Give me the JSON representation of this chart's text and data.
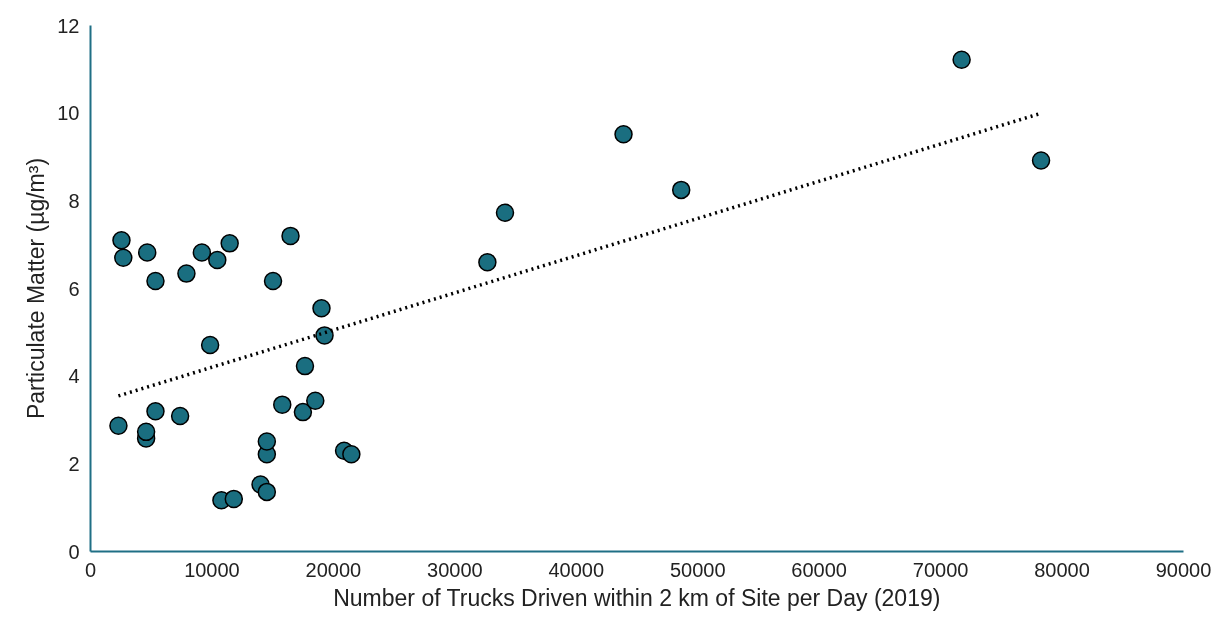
{
  "chart_data": {
    "type": "scatter",
    "xlabel": "Number of Trucks Driven within 2 km of Site per Day (2019)",
    "ylabel": "Particulate Matter (µg/m³)",
    "xlim": [
      0,
      90000
    ],
    "ylim": [
      0,
      12
    ],
    "xticks": [
      0,
      10000,
      20000,
      30000,
      40000,
      50000,
      60000,
      70000,
      80000,
      90000
    ],
    "yticks": [
      0,
      2,
      4,
      6,
      8,
      10,
      12
    ],
    "grid": false,
    "series": [
      {
        "marker": "circle",
        "color": "#1a6e80",
        "x": [
          2300,
          2550,
          2700,
          4670,
          4580,
          4580,
          5350,
          5350,
          7380,
          7900,
          9170,
          9850,
          10440,
          11460,
          10780,
          11800,
          14000,
          14520,
          14520,
          14520,
          15030,
          15790,
          16470,
          17490,
          17660,
          18510,
          19020,
          19270,
          20880,
          21480,
          32680,
          34130,
          43890,
          48640,
          71730,
          78270
        ],
        "values": [
          2.87,
          7.1,
          6.7,
          6.82,
          2.58,
          2.73,
          6.17,
          3.2,
          3.09,
          6.34,
          6.82,
          4.71,
          6.65,
          7.03,
          1.17,
          1.2,
          1.53,
          1.36,
          2.22,
          2.51,
          6.17,
          3.35,
          7.2,
          3.18,
          4.23,
          3.44,
          5.55,
          4.93,
          2.3,
          2.22,
          6.6,
          7.73,
          9.52,
          8.25,
          11.22,
          8.92
        ]
      },
      {
        "type": "line",
        "marker": "none",
        "line_style": "dotted",
        "color": "#000000",
        "x": [
          2300,
          78300
        ],
        "values": [
          3.55,
          10.0
        ]
      }
    ]
  }
}
